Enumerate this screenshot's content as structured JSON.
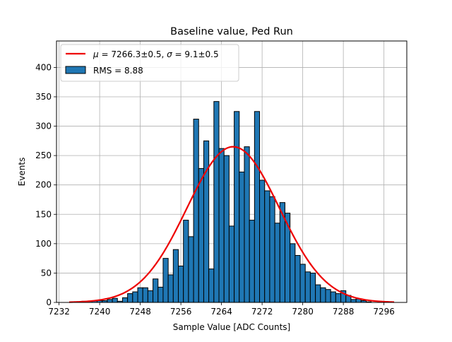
{
  "chart_data": {
    "type": "bar",
    "title": "Baseline value, Ped Run",
    "xlabel": "Sample Value [ADC Counts]",
    "ylabel": "Events",
    "xlim": [
      7231.5,
      7300.5
    ],
    "ylim": [
      0,
      445
    ],
    "grid": true,
    "legend_position": "upper-left",
    "x_ticks": [
      7232,
      7240,
      7248,
      7256,
      7264,
      7272,
      7280,
      7288,
      7296
    ],
    "y_ticks": [
      0,
      50,
      100,
      150,
      200,
      250,
      300,
      350,
      400
    ],
    "histogram": {
      "label": "RMS = 8.88",
      "color": "#1f77b4",
      "edge_color": "#000000",
      "bin_width": 1,
      "bin_centers": [
        7236,
        7237,
        7238,
        7239,
        7240,
        7241,
        7242,
        7243,
        7244,
        7245,
        7246,
        7247,
        7248,
        7249,
        7250,
        7251,
        7252,
        7253,
        7254,
        7255,
        7256,
        7257,
        7258,
        7259,
        7260,
        7261,
        7262,
        7263,
        7264,
        7265,
        7266,
        7267,
        7268,
        7269,
        7270,
        7271,
        7272,
        7273,
        7274,
        7275,
        7276,
        7277,
        7278,
        7279,
        7280,
        7281,
        7282,
        7283,
        7284,
        7285,
        7286,
        7287,
        7288,
        7289,
        7290,
        7291,
        7292,
        7293,
        7294,
        7295
      ],
      "values": [
        1,
        2,
        2,
        3,
        3,
        3,
        5,
        7,
        2,
        8,
        15,
        18,
        25,
        25,
        20,
        40,
        26,
        75,
        47,
        90,
        62,
        140,
        112,
        312,
        228,
        275,
        57,
        342,
        262,
        250,
        130,
        325,
        222,
        265,
        140,
        325,
        208,
        190,
        180,
        135,
        170,
        152,
        100,
        80,
        65,
        52,
        50,
        30,
        25,
        22,
        18,
        15,
        20,
        12,
        5,
        6,
        3,
        1,
        0,
        0
      ]
    },
    "fit": {
      "label_parts": {
        "mu_symbol": "μ",
        "mu_text": " = 7266.3±0.5, ",
        "sigma_symbol": "σ",
        "sigma_text": " = 9.1±0.5"
      },
      "type": "gaussian",
      "mu": 7266.3,
      "sigma": 9.1,
      "amplitude": 265,
      "x_range": [
        7234,
        7298
      ],
      "color": "#ee0000"
    }
  }
}
